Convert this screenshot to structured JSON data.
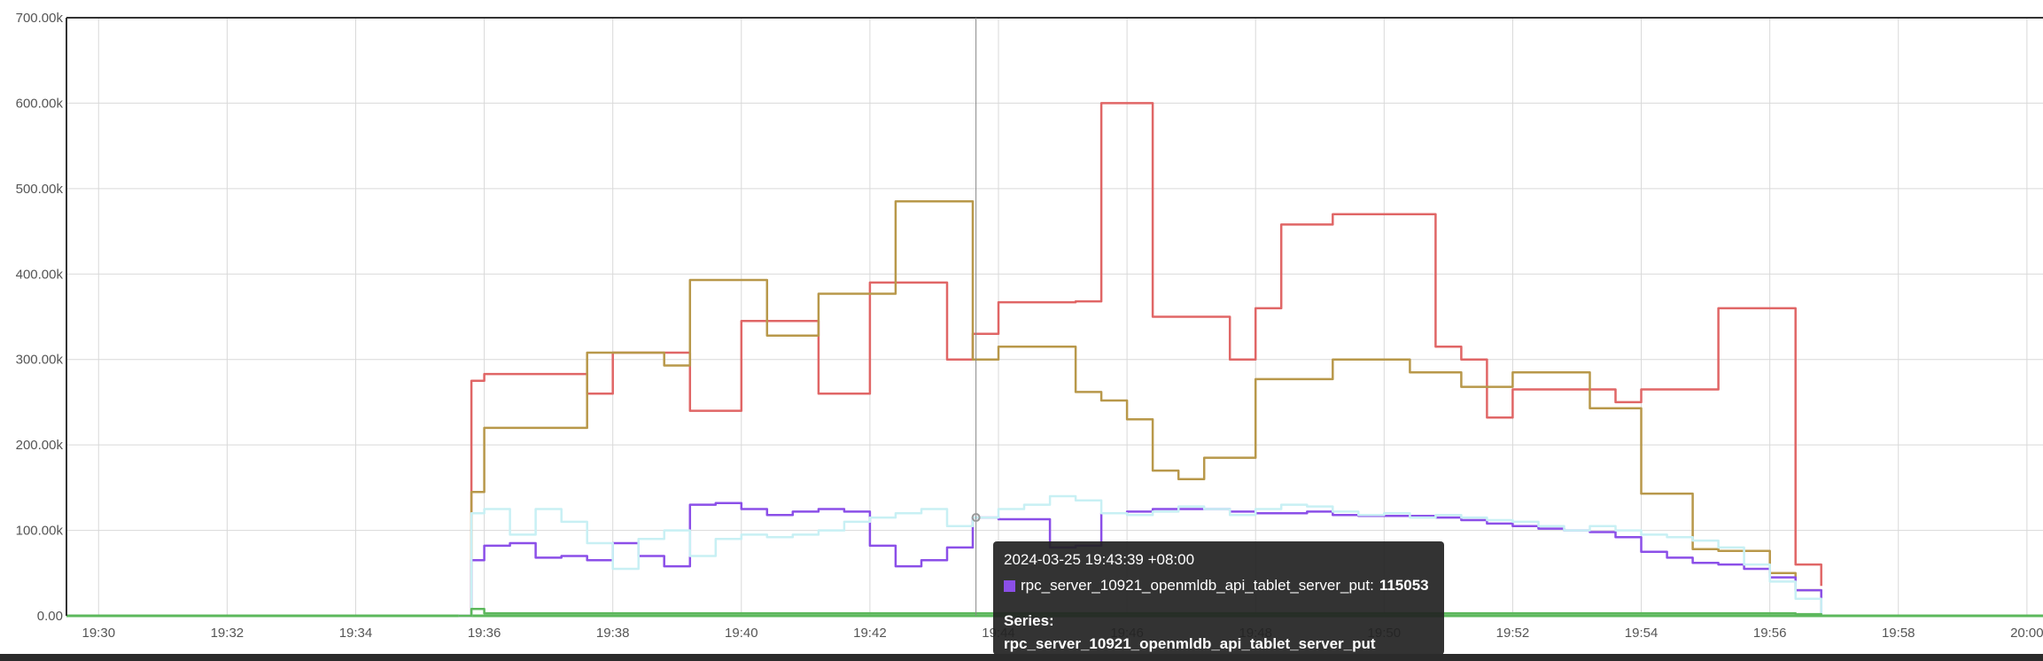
{
  "chart_data": {
    "type": "line",
    "x": [
      "19:35:36",
      "19:35:48",
      "19:36:00",
      "19:36:24",
      "19:36:48",
      "19:37:12",
      "19:37:36",
      "19:38:00",
      "19:38:24",
      "19:38:48",
      "19:39:12",
      "19:39:36",
      "19:40:00",
      "19:40:24",
      "19:40:48",
      "19:41:12",
      "19:41:36",
      "19:42:00",
      "19:42:24",
      "19:42:48",
      "19:43:12",
      "19:43:36",
      "19:44:00",
      "19:44:24",
      "19:44:48",
      "19:45:12",
      "19:45:36",
      "19:46:00",
      "19:46:24",
      "19:46:48",
      "19:47:12",
      "19:47:36",
      "19:48:00",
      "19:48:24",
      "19:48:48",
      "19:49:12",
      "19:49:36",
      "19:50:00",
      "19:50:24",
      "19:50:48",
      "19:51:12",
      "19:51:36",
      "19:52:00",
      "19:52:24",
      "19:52:48",
      "19:53:12",
      "19:53:36",
      "19:54:00",
      "19:54:24",
      "19:54:48",
      "19:55:12",
      "19:55:36",
      "19:56:00",
      "19:56:24",
      "19:56:48"
    ],
    "series": [
      {
        "color": "#e06666",
        "values": [
          0,
          275000,
          283000,
          283000,
          283000,
          283000,
          260000,
          308000,
          308000,
          308000,
          240000,
          240000,
          345000,
          345000,
          345000,
          260000,
          260000,
          390000,
          390000,
          390000,
          300000,
          330000,
          367000,
          367000,
          367000,
          368000,
          600000,
          600000,
          350000,
          350000,
          350000,
          300000,
          360000,
          458000,
          458000,
          470000,
          470000,
          470000,
          470000,
          315000,
          300000,
          232000,
          265000,
          265000,
          265000,
          265000,
          250000,
          265000,
          265000,
          265000,
          360000,
          360000,
          360000,
          60000,
          35000
        ]
      },
      {
        "color": "#b8984a",
        "values": [
          0,
          145000,
          220000,
          220000,
          220000,
          220000,
          308000,
          308000,
          308000,
          293000,
          393000,
          393000,
          393000,
          328000,
          328000,
          377000,
          377000,
          377000,
          485000,
          485000,
          485000,
          300000,
          315000,
          315000,
          315000,
          262000,
          252000,
          230000,
          170000,
          160000,
          185000,
          185000,
          277000,
          277000,
          277000,
          300000,
          300000,
          300000,
          285000,
          285000,
          268000,
          268000,
          285000,
          285000,
          285000,
          243000,
          243000,
          143000,
          143000,
          78000,
          76000,
          76000,
          50000,
          30000,
          0
        ]
      },
      {
        "color": "#8b4fe8",
        "values": [
          0,
          65000,
          82000,
          85000,
          68000,
          70000,
          65000,
          85000,
          70000,
          58000,
          130000,
          132000,
          125000,
          118000,
          122000,
          125000,
          122000,
          82000,
          58000,
          65000,
          80000,
          115000,
          113000,
          113000,
          80000,
          82000,
          120000,
          122000,
          125000,
          125000,
          125000,
          122000,
          120000,
          120000,
          122000,
          118000,
          117000,
          117000,
          117000,
          115000,
          112000,
          108000,
          105000,
          102000,
          100000,
          98000,
          92000,
          75000,
          68000,
          62000,
          60000,
          55000,
          45000,
          30000,
          0
        ]
      },
      {
        "color": "#c8f0f4",
        "values": [
          0,
          120000,
          125000,
          95000,
          125000,
          110000,
          85000,
          55000,
          90000,
          100000,
          70000,
          90000,
          95000,
          92000,
          95000,
          100000,
          110000,
          115000,
          120000,
          125000,
          105000,
          115000,
          125000,
          130000,
          140000,
          135000,
          120000,
          118000,
          122000,
          128000,
          125000,
          118000,
          125000,
          130000,
          128000,
          122000,
          118000,
          120000,
          115000,
          118000,
          115000,
          112000,
          110000,
          105000,
          100000,
          105000,
          100000,
          95000,
          92000,
          88000,
          80000,
          60000,
          40000,
          20000,
          0
        ]
      },
      {
        "color": "#5cb85c",
        "values": [
          0,
          8000,
          3000,
          3000,
          3000,
          3000,
          3000,
          3000,
          3000,
          3000,
          3000,
          3000,
          3000,
          3000,
          3000,
          3000,
          3000,
          3000,
          3000,
          3000,
          3000,
          3000,
          3000,
          3000,
          3000,
          3000,
          3000,
          3000,
          3000,
          3000,
          3000,
          3000,
          3000,
          3000,
          3000,
          3000,
          3000,
          3000,
          3000,
          3000,
          3000,
          3000,
          3000,
          3000,
          3000,
          3000,
          3000,
          3000,
          3000,
          3000,
          3000,
          3000,
          3000,
          2000,
          0
        ]
      }
    ],
    "x_ticks": [
      "19:30",
      "19:32",
      "19:34",
      "19:36",
      "19:38",
      "19:40",
      "19:42",
      "19:44",
      "19:46",
      "19:48",
      "19:50",
      "19:52",
      "19:54",
      "19:56",
      "19:58",
      "20:00"
    ],
    "y_ticks": [
      "0.00",
      "100.00k",
      "200.00k",
      "300.00k",
      "400.00k",
      "500.00k",
      "600.00k",
      "700.00k"
    ],
    "xlim": [
      "19:29:30",
      "20:00:15"
    ],
    "ylim": [
      0,
      700000
    ],
    "grid": true,
    "hover_time": "19:43:39"
  },
  "tooltip": {
    "time": "2024-03-25 19:43:39 +08:00",
    "swatch_color": "#8b4fe8",
    "series_name": "rpc_server_10921_openmldb_api_tablet_server_put:",
    "value": "115053",
    "series_label": "Series:",
    "series_full": "rpc_server_10921_openmldb_api_tablet_server_put"
  }
}
